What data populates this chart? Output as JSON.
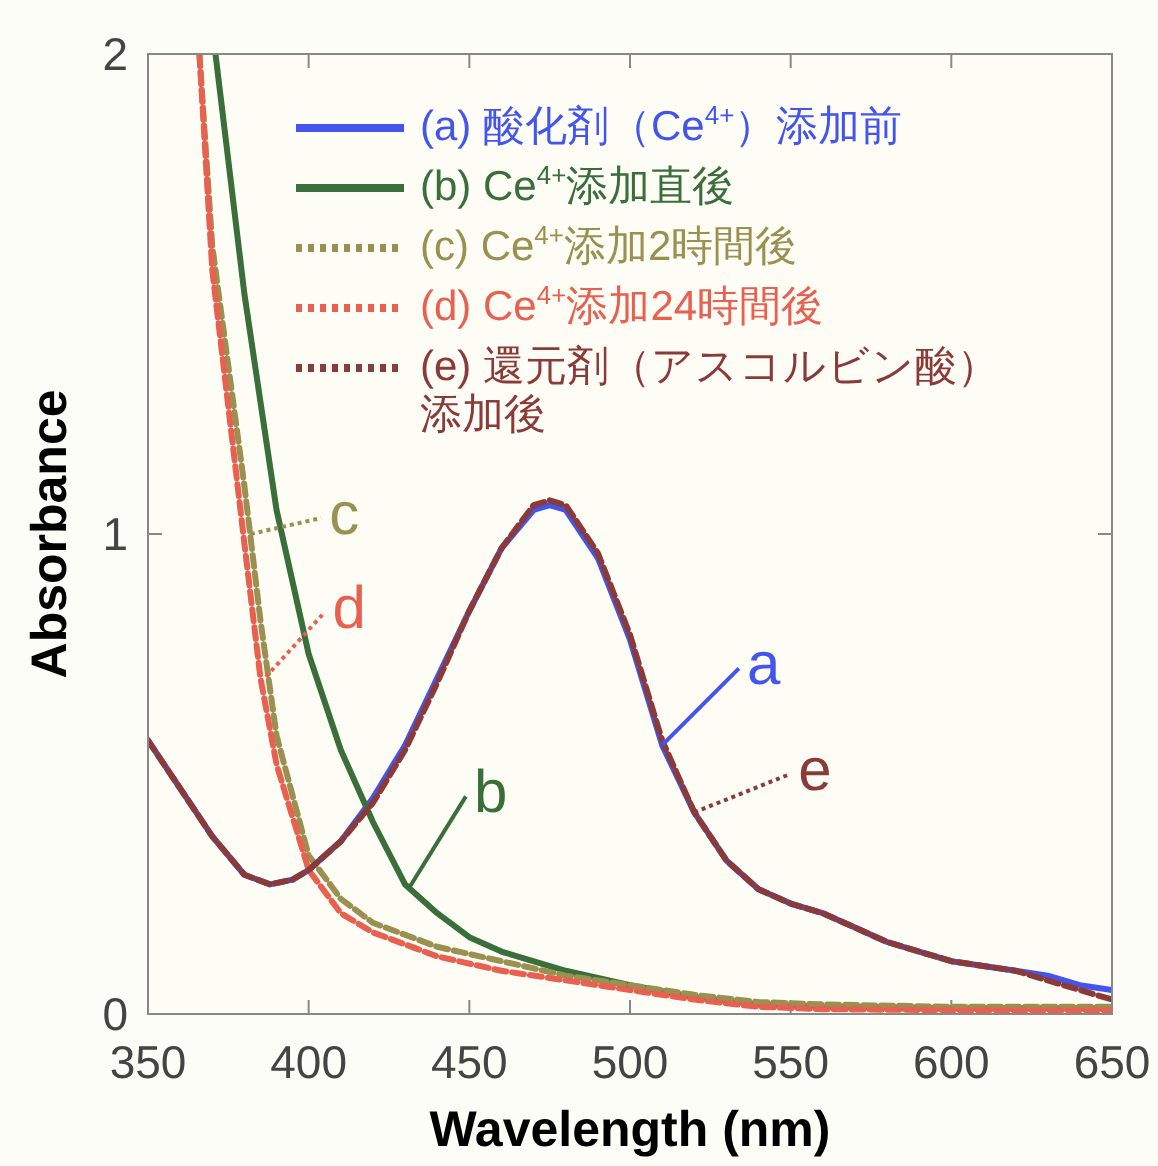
{
  "chart_data": {
    "type": "line",
    "xlabel": "Wavelength (nm)",
    "ylabel": "Absorbance",
    "xlim": [
      350,
      650
    ],
    "ylim": [
      0,
      2
    ],
    "xticks": [
      350,
      400,
      450,
      500,
      550,
      600,
      650
    ],
    "yticks": [
      0,
      1,
      2
    ],
    "legend": "top right",
    "grid": false,
    "series": [
      {
        "name": "(a) 酸化剤（Ce$^{4+}$）添加前",
        "color": "#4455ee",
        "line_style": "solid",
        "x": [
          350,
          360,
          370,
          380,
          388,
          395,
          400,
          410,
          420,
          430,
          440,
          450,
          460,
          470,
          475,
          480,
          490,
          500,
          510,
          520,
          530,
          540,
          550,
          560,
          570,
          580,
          590,
          600,
          610,
          620,
          630,
          640,
          650
        ],
        "values": [
          0.57,
          0.47,
          0.37,
          0.29,
          0.27,
          0.28,
          0.3,
          0.36,
          0.45,
          0.56,
          0.7,
          0.84,
          0.97,
          1.05,
          1.06,
          1.05,
          0.95,
          0.78,
          0.56,
          0.42,
          0.32,
          0.26,
          0.23,
          0.21,
          0.18,
          0.15,
          0.13,
          0.11,
          0.1,
          0.09,
          0.08,
          0.06,
          0.05
        ]
      },
      {
        "name": "(b) Ce$^{4+}$添加直後",
        "color": "#3a6e3a",
        "line_style": "solid",
        "x": [
          371,
          380,
          390,
          400,
          410,
          420,
          430,
          440,
          450,
          460,
          480,
          500,
          520,
          540,
          560,
          600,
          650
        ],
        "values": [
          2.0,
          1.5,
          1.05,
          0.75,
          0.55,
          0.4,
          0.27,
          0.21,
          0.16,
          0.13,
          0.09,
          0.06,
          0.035,
          0.02,
          0.015,
          0.012,
          0.012
        ]
      },
      {
        "name": "(c) Ce$^{4+}$添加2時間後",
        "color": "#9a9050",
        "line_style": "dashed",
        "x": [
          366,
          370,
          380,
          385,
          390,
          400,
          410,
          420,
          440,
          460,
          480,
          500,
          520,
          540,
          560,
          600,
          650
        ],
        "values": [
          2.0,
          1.6,
          1.1,
          0.82,
          0.58,
          0.33,
          0.24,
          0.19,
          0.14,
          0.11,
          0.08,
          0.06,
          0.04,
          0.025,
          0.02,
          0.015,
          0.015
        ]
      },
      {
        "name": "(d) Ce$^{4+}$添加24時間後",
        "color": "#e86050",
        "line_style": "dashed",
        "x": [
          366,
          370,
          380,
          385,
          390,
          400,
          410,
          420,
          440,
          460,
          480,
          500,
          520,
          540,
          560,
          600,
          650
        ],
        "values": [
          2.0,
          1.55,
          0.98,
          0.7,
          0.52,
          0.3,
          0.21,
          0.17,
          0.12,
          0.09,
          0.07,
          0.05,
          0.03,
          0.015,
          0.01,
          0.008,
          0.008
        ]
      },
      {
        "name": "(e) 還元剤（アスコルビン酸）添加後",
        "color": "#8b3a3a",
        "line_style": "dashed",
        "x": [
          350,
          360,
          370,
          380,
          388,
          395,
          400,
          410,
          420,
          430,
          440,
          450,
          460,
          470,
          475,
          480,
          490,
          500,
          510,
          520,
          530,
          540,
          550,
          560,
          570,
          580,
          590,
          600,
          610,
          620,
          630,
          640,
          650
        ],
        "values": [
          0.57,
          0.47,
          0.37,
          0.29,
          0.27,
          0.28,
          0.3,
          0.36,
          0.44,
          0.55,
          0.69,
          0.84,
          0.97,
          1.06,
          1.07,
          1.06,
          0.96,
          0.79,
          0.57,
          0.42,
          0.32,
          0.26,
          0.23,
          0.21,
          0.18,
          0.15,
          0.13,
          0.11,
          0.1,
          0.09,
          0.07,
          0.05,
          0.03
        ]
      }
    ],
    "annotations": [
      {
        "text": "a",
        "x": 510,
        "y": 0.56
      },
      {
        "text": "b",
        "x": 431,
        "y": 0.26
      },
      {
        "text": "c",
        "x": 382,
        "y": 1.0
      },
      {
        "text": "d",
        "x": 385,
        "y": 0.69
      },
      {
        "text": "e",
        "x": 520,
        "y": 0.42
      }
    ]
  }
}
